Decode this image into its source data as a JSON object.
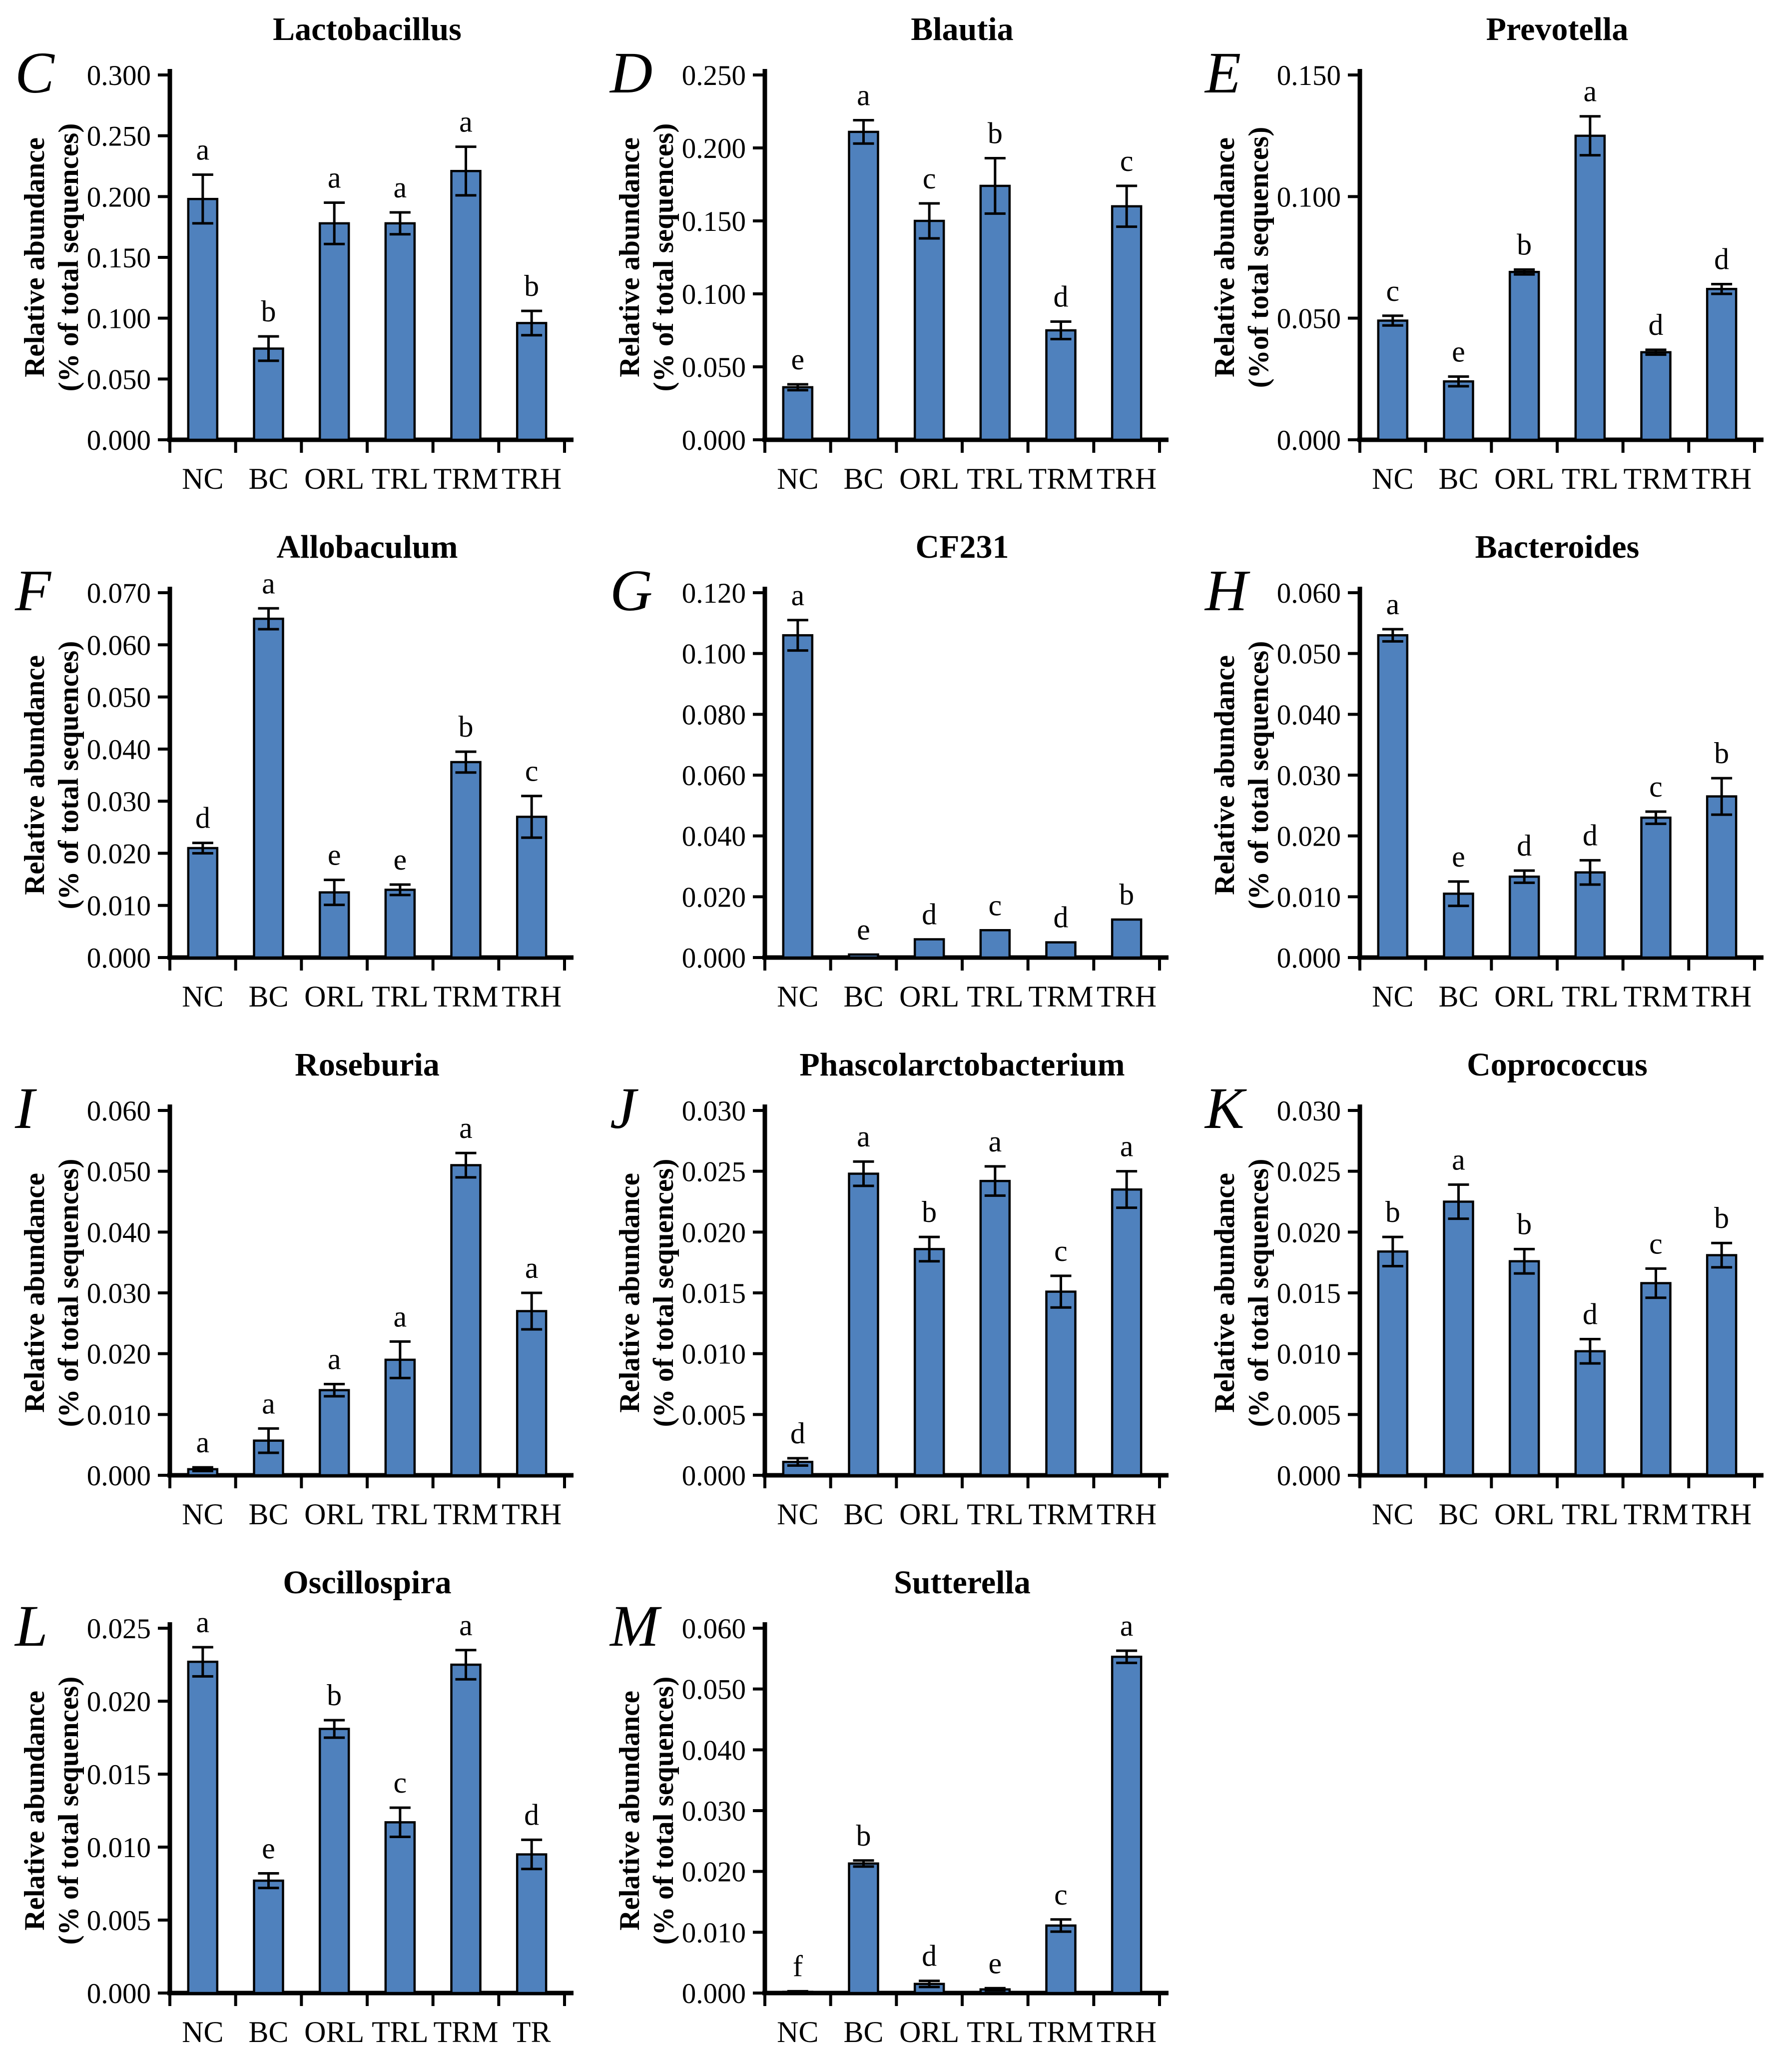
{
  "figure": {
    "background": "#ffffff",
    "bar_fill": "#4F81BD",
    "bar_stroke": "#000000",
    "axis_color": "#000000",
    "text_color": "#000000",
    "groups": [
      "NC",
      "BC",
      "ORL",
      "TRL",
      "TRM",
      "TRH"
    ]
  },
  "chart_data": [
    {
      "type": "bar",
      "panel_letter": "C",
      "title": "Lactobacillus",
      "ylabel_line1": "Relative abundance",
      "ylabel_line2": "(% of total sequences)",
      "categories": [
        "NC",
        "BC",
        "ORL",
        "TRL",
        "TRM",
        "TRH"
      ],
      "values": [
        0.198,
        0.075,
        0.178,
        0.178,
        0.221,
        0.096
      ],
      "errors": [
        0.02,
        0.01,
        0.017,
        0.009,
        0.02,
        0.01
      ],
      "sig_letters": [
        "a",
        "b",
        "a",
        "a",
        "a",
        "b"
      ],
      "ylim": [
        0,
        0.3
      ],
      "ytick_step": 0.05,
      "grid_row": 1,
      "grid_col": 1
    },
    {
      "type": "bar",
      "panel_letter": "D",
      "title": "Blautia",
      "ylabel_line1": "Relative abundance",
      "ylabel_line2": "(% of total sequences)",
      "categories": [
        "NC",
        "BC",
        "ORL",
        "TRL",
        "TRM",
        "TRH"
      ],
      "values": [
        0.036,
        0.211,
        0.15,
        0.174,
        0.075,
        0.16
      ],
      "errors": [
        0.002,
        0.008,
        0.012,
        0.019,
        0.006,
        0.014
      ],
      "sig_letters": [
        "e",
        "a",
        "c",
        "b",
        "d",
        "c"
      ],
      "ylim": [
        0,
        0.25
      ],
      "ytick_step": 0.05,
      "grid_row": 1,
      "grid_col": 2
    },
    {
      "type": "bar",
      "panel_letter": "E",
      "title": "Prevotella",
      "ylabel_line1": "Relative abundance",
      "ylabel_line2": "(%of total sequences)",
      "categories": [
        "NC",
        "BC",
        "ORL",
        "TRL",
        "TRM",
        "TRH"
      ],
      "values": [
        0.049,
        0.024,
        0.069,
        0.125,
        0.036,
        0.062
      ],
      "errors": [
        0.002,
        0.002,
        0.001,
        0.008,
        0.001,
        0.002
      ],
      "sig_letters": [
        "c",
        "e",
        "b",
        "a",
        "d",
        "d"
      ],
      "ylim": [
        0,
        0.15
      ],
      "ytick_step": 0.05,
      "grid_row": 1,
      "grid_col": 3
    },
    {
      "type": "bar",
      "panel_letter": "F",
      "title": "Allobaculum",
      "ylabel_line1": "Relative abundance",
      "ylabel_line2": "(% of total sequences)",
      "categories": [
        "NC",
        "BC",
        "ORL",
        "TRL",
        "TRM",
        "TRH"
      ],
      "values": [
        0.021,
        0.065,
        0.0125,
        0.013,
        0.0375,
        0.027
      ],
      "errors": [
        0.001,
        0.002,
        0.0024,
        0.001,
        0.002,
        0.004
      ],
      "sig_letters": [
        "d",
        "a",
        "e",
        "e",
        "b",
        "c"
      ],
      "ylim": [
        0,
        0.07
      ],
      "ytick_step": 0.01,
      "grid_row": 2,
      "grid_col": 1
    },
    {
      "type": "bar",
      "panel_letter": "G",
      "title": "CF231",
      "ylabel_line1": null,
      "ylabel_line2": null,
      "categories": [
        "NC",
        "BC",
        "ORL",
        "TRL",
        "TRM",
        "TRH"
      ],
      "values": [
        0.106,
        0.001,
        0.006,
        0.009,
        0.005,
        0.0125
      ],
      "errors": [
        0.005,
        0,
        0,
        0,
        0,
        0
      ],
      "sig_letters": [
        "a",
        "e",
        "d",
        "c",
        "d",
        "b"
      ],
      "ylim": [
        0,
        0.12
      ],
      "ytick_step": 0.02,
      "grid_row": 2,
      "grid_col": 2
    },
    {
      "type": "bar",
      "panel_letter": "H",
      "title": "Bacteroides",
      "ylabel_line1": "Relative abundance",
      "ylabel_line2": "(% of total sequences)",
      "categories": [
        "NC",
        "BC",
        "ORL",
        "TRL",
        "TRM",
        "TRH"
      ],
      "values": [
        0.053,
        0.0105,
        0.0133,
        0.014,
        0.023,
        0.0265
      ],
      "errors": [
        0.001,
        0.002,
        0.001,
        0.002,
        0.001,
        0.003
      ],
      "sig_letters": [
        "a",
        "e",
        "d",
        "d",
        "c",
        "b"
      ],
      "ylim": [
        0,
        0.06
      ],
      "ytick_step": 0.01,
      "grid_row": 2,
      "grid_col": 3
    },
    {
      "type": "bar",
      "panel_letter": "I",
      "title": "Roseburia",
      "ylabel_line1": "Relative abundance",
      "ylabel_line2": "(% of total sequences)",
      "categories": [
        "NC",
        "BC",
        "ORL",
        "TRL",
        "TRM",
        "TRH"
      ],
      "values": [
        0.001,
        0.0057,
        0.014,
        0.019,
        0.051,
        0.027
      ],
      "errors": [
        0.0003,
        0.002,
        0.001,
        0.003,
        0.002,
        0.003
      ],
      "sig_letters": [
        "a",
        "a",
        "a",
        "a",
        "a",
        "a"
      ],
      "ylim": [
        0,
        0.06
      ],
      "ytick_step": 0.01,
      "grid_row": 3,
      "grid_col": 1
    },
    {
      "type": "bar",
      "panel_letter": "J",
      "title": "Phascolarctobacterium",
      "ylabel_line1": "Relative abundance",
      "ylabel_line2": "(% of total sequences)",
      "categories": [
        "NC",
        "BC",
        "ORL",
        "TRL",
        "TRM",
        "TRH"
      ],
      "values": [
        0.0011,
        0.0248,
        0.0186,
        0.0242,
        0.0151,
        0.0235
      ],
      "errors": [
        0.0003,
        0.001,
        0.001,
        0.0012,
        0.0013,
        0.0015
      ],
      "sig_letters": [
        "d",
        "a",
        "b",
        "a",
        "c",
        "a"
      ],
      "ylim": [
        0,
        0.03
      ],
      "ytick_step": 0.005,
      "grid_row": 3,
      "grid_col": 2
    },
    {
      "type": "bar",
      "panel_letter": "K",
      "title": "Coprococcus",
      "ylabel_line1": "Relative abundance",
      "ylabel_line2": "(% of total sequences)",
      "categories": [
        "NC",
        "BC",
        "ORL",
        "TRL",
        "TRM",
        "TRH"
      ],
      "values": [
        0.0184,
        0.0225,
        0.0176,
        0.0102,
        0.0158,
        0.0181
      ],
      "errors": [
        0.0012,
        0.0014,
        0.001,
        0.001,
        0.0012,
        0.001
      ],
      "sig_letters": [
        "b",
        "a",
        "b",
        "d",
        "c",
        "b"
      ],
      "ylim": [
        0,
        0.03
      ],
      "ytick_step": 0.005,
      "grid_row": 3,
      "grid_col": 3
    },
    {
      "type": "bar",
      "panel_letter": "L",
      "title": "Oscillospira",
      "ylabel_line1": "Relative abundance",
      "ylabel_line2": "(% of total sequences)",
      "categories": [
        "NC",
        "BC",
        "ORL",
        "TRL",
        "TRM",
        "TR"
      ],
      "values": [
        0.0227,
        0.0077,
        0.0181,
        0.0117,
        0.0225,
        0.0095
      ],
      "errors": [
        0.001,
        0.0005,
        0.0006,
        0.001,
        0.001,
        0.001
      ],
      "sig_letters": [
        "a",
        "e",
        "b",
        "c",
        "a",
        "d"
      ],
      "ylim": [
        0,
        0.025
      ],
      "ytick_step": 0.005,
      "grid_row": 4,
      "grid_col": 1
    },
    {
      "type": "bar",
      "panel_letter": "M",
      "title": "Sutterella",
      "ylabel_line1": "Relative abundance",
      "ylabel_line2": "(% of total sequences)",
      "categories": [
        "NC",
        "BC",
        "ORL",
        "TRL",
        "TRM",
        "TRH"
      ],
      "values": [
        0.0002,
        0.0213,
        0.0015,
        0.0006,
        0.0111,
        0.0553
      ],
      "errors": [
        0.0001,
        0.0005,
        0.0005,
        0.0002,
        0.001,
        0.001
      ],
      "sig_letters": [
        "f",
        "b",
        "d",
        "e",
        "c",
        "a"
      ],
      "ylim": [
        0,
        0.06
      ],
      "ytick_step": 0.01,
      "grid_row": 4,
      "grid_col": 2
    }
  ]
}
